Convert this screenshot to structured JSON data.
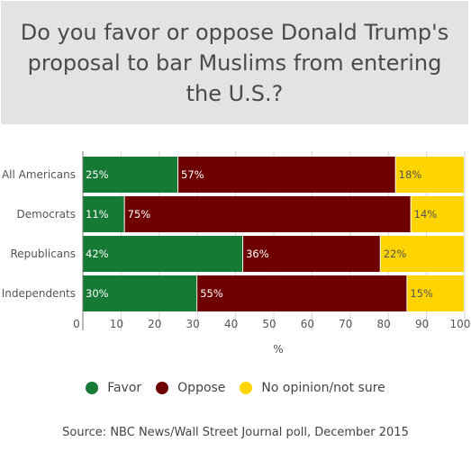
{
  "chart_data": {
    "type": "bar",
    "orientation": "horizontal",
    "stacked": true,
    "title": "Do you favor or oppose Donald Trump's proposal to bar Muslims from entering the U.S.?",
    "categories": [
      "All Americans",
      "Democrats",
      "Republicans",
      "Independents"
    ],
    "series": [
      {
        "name": "Favor",
        "color": "#167a35",
        "values": [
          25,
          11,
          42,
          30
        ]
      },
      {
        "name": "Oppose",
        "color": "#6e0000",
        "values": [
          57,
          75,
          36,
          55
        ]
      },
      {
        "name": "No opinion/not sure",
        "color": "#ffd400",
        "values": [
          18,
          14,
          22,
          15
        ]
      }
    ],
    "data_labels": [
      [
        "25%",
        "11%",
        "42%",
        "30%"
      ],
      [
        "57%",
        "75%",
        "36%",
        "55%"
      ],
      [
        "18%",
        "14%",
        "22%",
        "15%"
      ]
    ],
    "xlabel": "%",
    "ylabel": "",
    "xlim": [
      0,
      100
    ],
    "xticks": [
      "0",
      "10",
      "20",
      "30",
      "40",
      "50",
      "60",
      "70",
      "80",
      "90",
      "100"
    ],
    "legend_position": "bottom",
    "grid": "vertical"
  },
  "source": "Source: NBC News/Wall Street Journal poll, December 2015"
}
